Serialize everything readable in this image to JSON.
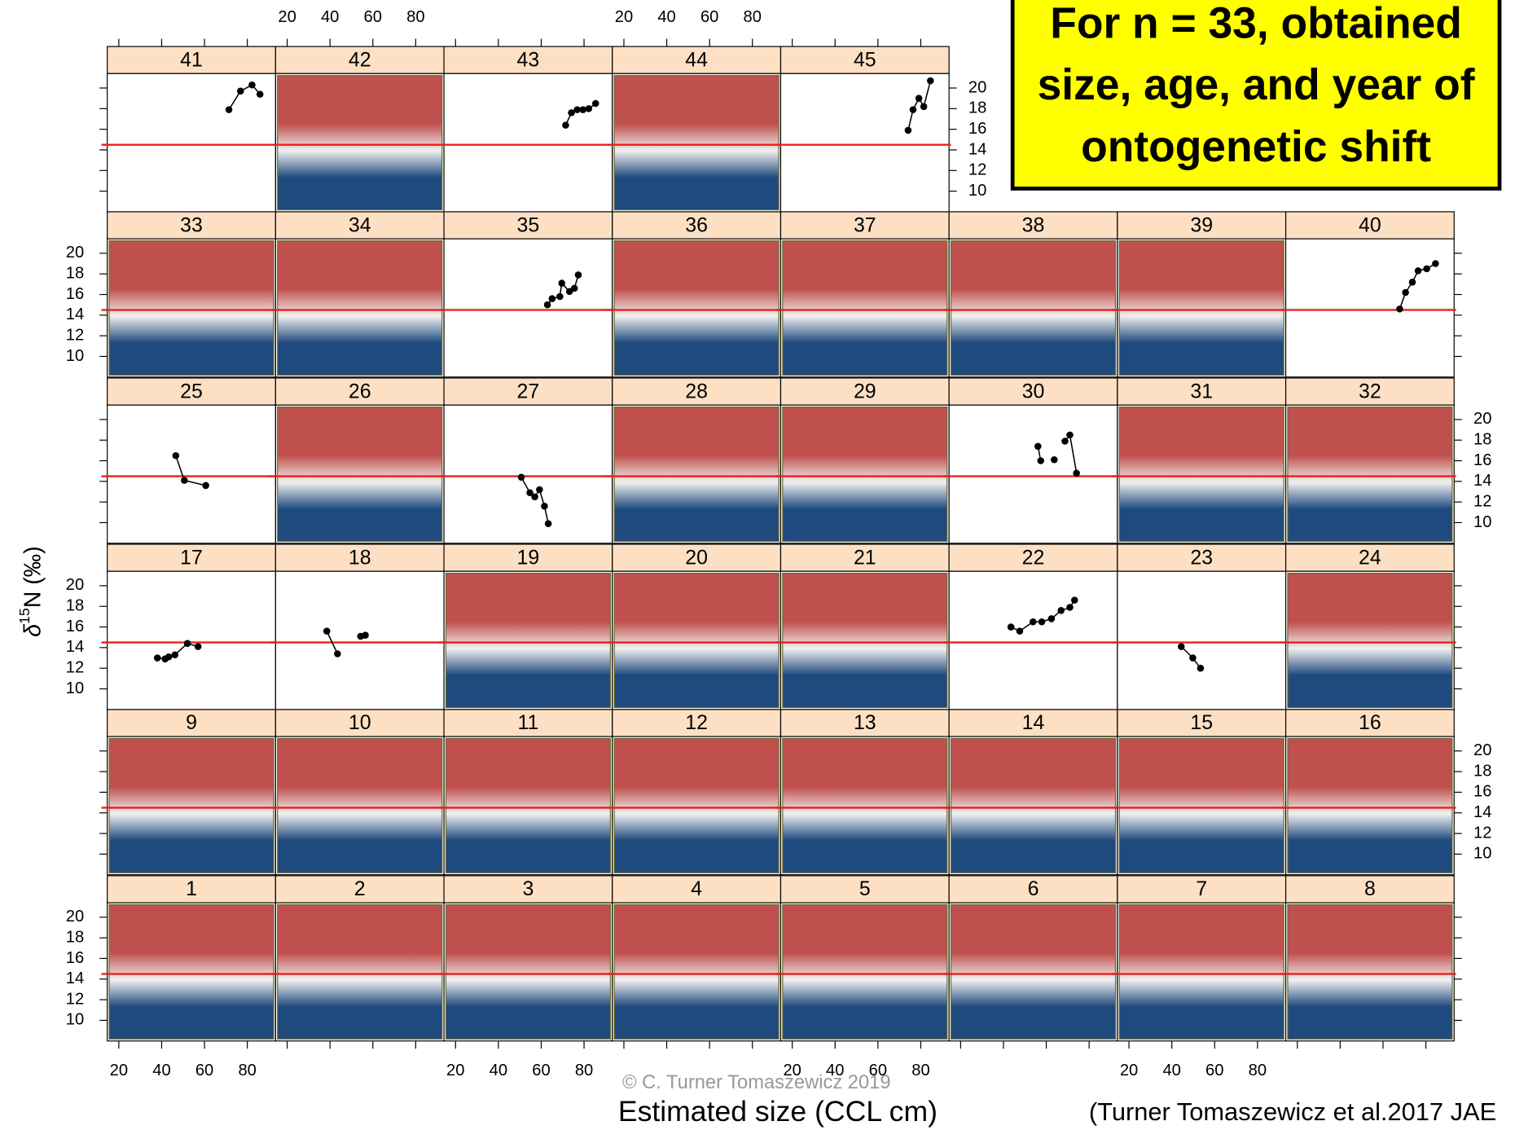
{
  "chart_data": {
    "type": "line",
    "x_label": "Estimated size (CCL cm)",
    "y_label": [
      "δ",
      "15",
      "N (‰)"
    ],
    "xlim": [
      14.6,
      93.2
    ],
    "xticks": [
      20,
      40,
      60,
      80
    ],
    "ylim": [
      8.0,
      21.4
    ],
    "yticks": [
      10,
      12,
      14,
      16,
      18,
      20
    ],
    "hline": 14.5,
    "hline_color": "#e8201c",
    "point_color": "#000000",
    "strip_color": "#fde0c4",
    "shading_colors": [
      "#c0504d",
      "#f0f0f0",
      "#1f4a7e"
    ],
    "annotation": [
      "For n = 33, obtained",
      "size, age, and year of",
      "ontogenetic shift"
    ],
    "annotation_color": "#ffff00",
    "credit": "© C. Turner Tomaszewicz 2019",
    "citation": "(Turner Tomaszewicz et al.2017 JAE",
    "panels": [
      {
        "label": 1
      },
      {
        "label": 2
      },
      {
        "label": 3
      },
      {
        "label": 4
      },
      {
        "label": 5
      },
      {
        "label": 6
      },
      {
        "label": 7
      },
      {
        "label": 8
      },
      {
        "label": 9
      },
      {
        "label": 10
      },
      {
        "label": 11
      },
      {
        "label": 12
      },
      {
        "label": 13
      },
      {
        "label": 14
      },
      {
        "label": 15
      },
      {
        "label": 16
      },
      {
        "label": 17,
        "x": [
          38.0,
          41.6,
          43.3,
          46.2,
          52.0,
          57.0
        ],
        "values": [
          13.0,
          12.9,
          13.1,
          13.3,
          14.4,
          14.1
        ]
      },
      {
        "label": 18,
        "x": [
          38.5,
          43.5,
          null,
          54.3,
          56.5
        ],
        "values": [
          15.6,
          13.4,
          null,
          15.1,
          15.2
        ]
      },
      {
        "label": 19
      },
      {
        "label": 20
      },
      {
        "label": 21
      },
      {
        "label": 22,
        "x": [
          43.5,
          47.6,
          53.8,
          57.9,
          62.4,
          66.9,
          71.0,
          73.2
        ],
        "values": [
          16.0,
          15.6,
          16.5,
          16.5,
          16.8,
          17.6,
          17.9,
          18.6
        ]
      },
      {
        "label": 23,
        "x": [
          44.4,
          49.8,
          53.4
        ],
        "values": [
          14.1,
          13.0,
          12.0
        ]
      },
      {
        "label": 24
      },
      {
        "label": 25,
        "x": [
          46.6,
          50.6,
          60.6
        ],
        "values": [
          16.5,
          14.1,
          13.6
        ]
      },
      {
        "label": 26
      },
      {
        "label": 27,
        "x": [
          50.7,
          54.7,
          57.0,
          59.2,
          61.5,
          63.3
        ],
        "values": [
          14.4,
          12.9,
          12.5,
          13.2,
          11.6,
          9.9
        ]
      },
      {
        "label": 28
      },
      {
        "label": 29
      },
      {
        "label": 30,
        "x": [
          56.1,
          57.4,
          null,
          63.7,
          null,
          68.7,
          71.0,
          74.1
        ],
        "values": [
          17.4,
          16.0,
          null,
          16.1,
          null,
          17.9,
          18.5,
          14.8
        ]
      },
      {
        "label": 31
      },
      {
        "label": 32
      },
      {
        "label": 33
      },
      {
        "label": 34
      },
      {
        "label": 35,
        "x": [
          62.9,
          65.1,
          68.7,
          69.6,
          73.2,
          75.5,
          77.3
        ],
        "values": [
          15.0,
          15.6,
          15.8,
          17.1,
          16.3,
          16.6,
          17.9
        ]
      },
      {
        "label": 36
      },
      {
        "label": 37
      },
      {
        "label": 38
      },
      {
        "label": 39
      },
      {
        "label": 40,
        "x": [
          67.8,
          70.5,
          73.7,
          76.4,
          80.4,
          84.5
        ],
        "values": [
          14.6,
          16.2,
          17.2,
          18.3,
          18.5,
          19.0
        ]
      },
      {
        "label": 41,
        "x": [
          71.4,
          76.8,
          82.2,
          85.9
        ],
        "values": [
          17.9,
          19.7,
          20.3,
          19.4
        ]
      },
      {
        "label": 42
      },
      {
        "label": 43,
        "x": [
          71.4,
          74.1,
          76.8,
          79.5,
          82.2,
          85.4
        ],
        "values": [
          16.4,
          17.6,
          17.9,
          17.9,
          18.0,
          18.5
        ]
      },
      {
        "label": 44
      },
      {
        "label": 45,
        "x": [
          74.1,
          76.4,
          79.1,
          81.4,
          84.5
        ],
        "values": [
          15.9,
          17.9,
          19.0,
          18.2,
          20.7
        ]
      }
    ]
  }
}
